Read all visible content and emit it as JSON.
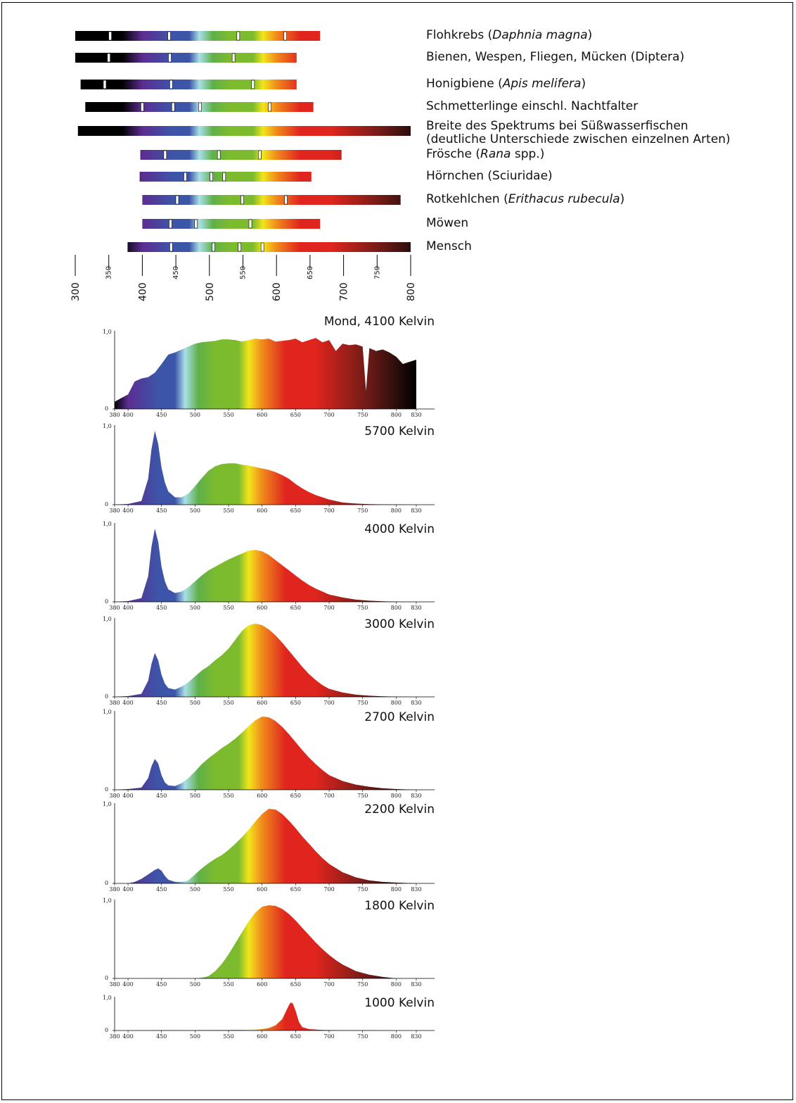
{
  "colors": {
    "black": "#000000",
    "violet": "#5b2d91",
    "blue": "#3d55a8",
    "cyan": "#a9dfe8",
    "green": "#7dbb2e",
    "yellow": "#f2e51a",
    "orange": "#f08a1c",
    "red": "#e0251e",
    "darkred": "#6a1a16",
    "marker": "#ffffff"
  },
  "species": [
    {
      "prefix": "Flohkrebs (",
      "italic": "Daphnia magna",
      "suffix": ")",
      "start": 300,
      "end": 665,
      "markers": [
        352,
        440,
        543,
        613
      ]
    },
    {
      "prefix": "Bienen, Wespen, Fliegen, Mücken (Diptera)",
      "italic": "",
      "suffix": "",
      "start": 300,
      "end": 630,
      "markers": [
        350,
        441,
        536
      ]
    },
    {
      "prefix": "Honigbiene (",
      "italic": "Apis melifera",
      "suffix": ")",
      "start": 308,
      "end": 630,
      "markers": [
        344,
        443,
        565
      ]
    },
    {
      "prefix": "Schmetterlinge einschl. Nachtfalter",
      "italic": "",
      "suffix": "",
      "start": 315,
      "end": 655,
      "markers": [
        400,
        446,
        486,
        590
      ]
    },
    {
      "prefix": "Breite des Spektrums bei Süßwasserfischen",
      "line2": "(deutliche Unterschiede zwischen einzelnen Arten)",
      "italic": "",
      "suffix": "",
      "start": 304,
      "end": 800,
      "markers": []
    },
    {
      "prefix": "Frösche (",
      "italic": "Rana",
      "suffix": " spp.)",
      "start": 397,
      "end": 697,
      "markers": [
        434,
        514,
        575
      ]
    },
    {
      "prefix": "Hörnchen (Sciuridae)",
      "italic": "",
      "suffix": "",
      "start": 396,
      "end": 652,
      "markers": [
        464,
        503,
        522
      ]
    },
    {
      "prefix": "Rotkehlchen (",
      "italic": "Erithacus rubecula",
      "suffix": ")",
      "start": 400,
      "end": 785,
      "markers": [
        452,
        549,
        614
      ]
    },
    {
      "prefix": "Möwen",
      "italic": "",
      "suffix": "",
      "start": 400,
      "end": 665,
      "markers": [
        442,
        480,
        561
      ]
    },
    {
      "prefix": "Mensch",
      "italic": "",
      "suffix": "",
      "start": 378,
      "end": 800,
      "markers": [
        443,
        506,
        545,
        579
      ]
    }
  ],
  "top_axis": {
    "ticks": [
      "300",
      "350",
      "400",
      "450",
      "500",
      "550",
      "600",
      "650",
      "700",
      "750",
      "800"
    ]
  },
  "chart_data": [
    {
      "type": "area",
      "title": "Mond, 4100 Kelvin",
      "xlim": [
        380,
        830
      ],
      "ylim": [
        0,
        1
      ],
      "yticks": [
        "1,0",
        "0"
      ],
      "xticks": [
        "380",
        "400",
        "450",
        "500",
        "550",
        "600",
        "650",
        "700",
        "750",
        "800",
        "830"
      ],
      "x": [
        380,
        390,
        400,
        410,
        420,
        430,
        440,
        450,
        460,
        470,
        480,
        490,
        500,
        510,
        520,
        530,
        540,
        550,
        560,
        570,
        580,
        590,
        600,
        610,
        620,
        630,
        640,
        650,
        660,
        670,
        680,
        690,
        700,
        710,
        720,
        730,
        740,
        750,
        755,
        760,
        770,
        780,
        790,
        800,
        810,
        820,
        830
      ],
      "y": [
        0.1,
        0.15,
        0.2,
        0.38,
        0.42,
        0.44,
        0.5,
        0.62,
        0.75,
        0.78,
        0.82,
        0.86,
        0.9,
        0.92,
        0.93,
        0.94,
        0.96,
        0.96,
        0.95,
        0.93,
        0.95,
        0.97,
        0.96,
        0.97,
        0.93,
        0.94,
        0.95,
        0.97,
        0.92,
        0.95,
        0.98,
        0.92,
        0.95,
        0.8,
        0.9,
        0.88,
        0.89,
        0.86,
        0.25,
        0.84,
        0.8,
        0.82,
        0.78,
        0.72,
        0.62,
        0.65,
        0.68
      ]
    },
    {
      "type": "area",
      "title": "5700 Kelvin",
      "xlim": [
        380,
        830
      ],
      "ylim": [
        0,
        1
      ],
      "yticks": [
        "1,0",
        "0"
      ],
      "xticks": [
        "380",
        "400",
        "450",
        "500",
        "550",
        "600",
        "650",
        "700",
        "750",
        "800",
        "830"
      ],
      "x": [
        380,
        400,
        420,
        430,
        435,
        440,
        445,
        450,
        455,
        460,
        470,
        480,
        490,
        500,
        510,
        520,
        530,
        540,
        550,
        560,
        570,
        580,
        590,
        600,
        610,
        620,
        630,
        640,
        650,
        660,
        670,
        680,
        690,
        700,
        720,
        740,
        760,
        780,
        800,
        830
      ],
      "y": [
        0,
        0.01,
        0.05,
        0.35,
        0.75,
        1.0,
        0.82,
        0.5,
        0.3,
        0.18,
        0.1,
        0.1,
        0.15,
        0.25,
        0.36,
        0.46,
        0.52,
        0.55,
        0.56,
        0.56,
        0.54,
        0.53,
        0.51,
        0.49,
        0.47,
        0.44,
        0.4,
        0.35,
        0.28,
        0.22,
        0.17,
        0.13,
        0.1,
        0.07,
        0.03,
        0.015,
        0.008,
        0.004,
        0.002,
        0
      ]
    },
    {
      "type": "area",
      "title": "4000 Kelvin",
      "xlim": [
        380,
        830
      ],
      "ylim": [
        0,
        1
      ],
      "yticks": [
        "1,0",
        "0"
      ],
      "xticks": [
        "380",
        "400",
        "450",
        "500",
        "550",
        "600",
        "650",
        "700",
        "750",
        "800",
        "830"
      ],
      "x": [
        380,
        400,
        420,
        430,
        435,
        440,
        445,
        450,
        455,
        460,
        470,
        480,
        490,
        500,
        510,
        520,
        530,
        540,
        550,
        560,
        570,
        580,
        590,
        600,
        610,
        620,
        630,
        640,
        650,
        660,
        670,
        680,
        690,
        700,
        720,
        740,
        760,
        780,
        800,
        830
      ],
      "y": [
        0,
        0.01,
        0.05,
        0.35,
        0.75,
        1.0,
        0.82,
        0.48,
        0.28,
        0.17,
        0.12,
        0.14,
        0.2,
        0.28,
        0.36,
        0.43,
        0.48,
        0.53,
        0.58,
        0.62,
        0.66,
        0.7,
        0.71,
        0.69,
        0.64,
        0.57,
        0.5,
        0.43,
        0.36,
        0.29,
        0.23,
        0.18,
        0.14,
        0.1,
        0.06,
        0.03,
        0.015,
        0.007,
        0.003,
        0
      ]
    },
    {
      "type": "area",
      "title": "3000 Kelvin",
      "xlim": [
        380,
        830
      ],
      "ylim": [
        0,
        1
      ],
      "yticks": [
        "1,0",
        "0"
      ],
      "xticks": [
        "380",
        "400",
        "450",
        "500",
        "550",
        "600",
        "650",
        "700",
        "750",
        "800",
        "830"
      ],
      "x": [
        380,
        400,
        420,
        430,
        435,
        440,
        445,
        450,
        455,
        460,
        470,
        480,
        490,
        500,
        510,
        520,
        530,
        540,
        550,
        560,
        570,
        580,
        590,
        600,
        610,
        620,
        630,
        640,
        650,
        660,
        670,
        680,
        690,
        700,
        720,
        740,
        760,
        780,
        800,
        830
      ],
      "y": [
        0,
        0.01,
        0.04,
        0.22,
        0.45,
        0.6,
        0.5,
        0.3,
        0.18,
        0.12,
        0.1,
        0.14,
        0.2,
        0.28,
        0.36,
        0.42,
        0.5,
        0.57,
        0.66,
        0.78,
        0.9,
        0.98,
        1.0,
        0.98,
        0.92,
        0.84,
        0.74,
        0.63,
        0.52,
        0.41,
        0.31,
        0.23,
        0.16,
        0.11,
        0.06,
        0.03,
        0.015,
        0.007,
        0.003,
        0
      ]
    },
    {
      "type": "area",
      "title": "2700 Kelvin",
      "xlim": [
        380,
        830
      ],
      "ylim": [
        0,
        1
      ],
      "yticks": [
        "1,0",
        "0"
      ],
      "xticks": [
        "380",
        "400",
        "450",
        "500",
        "550",
        "600",
        "650",
        "700",
        "750",
        "800",
        "830"
      ],
      "x": [
        380,
        400,
        420,
        430,
        435,
        440,
        445,
        450,
        455,
        460,
        470,
        480,
        490,
        500,
        510,
        520,
        530,
        540,
        550,
        560,
        570,
        580,
        590,
        600,
        610,
        620,
        630,
        640,
        650,
        660,
        670,
        680,
        690,
        700,
        720,
        740,
        760,
        780,
        800,
        830
      ],
      "y": [
        0,
        0.01,
        0.03,
        0.16,
        0.32,
        0.42,
        0.36,
        0.2,
        0.1,
        0.06,
        0.05,
        0.09,
        0.16,
        0.25,
        0.35,
        0.43,
        0.5,
        0.57,
        0.63,
        0.7,
        0.78,
        0.87,
        0.95,
        1.0,
        0.99,
        0.94,
        0.86,
        0.76,
        0.65,
        0.54,
        0.44,
        0.35,
        0.27,
        0.2,
        0.12,
        0.07,
        0.04,
        0.02,
        0.01,
        0
      ]
    },
    {
      "type": "area",
      "title": "2200 Kelvin",
      "xlim": [
        380,
        830
      ],
      "ylim": [
        0,
        1
      ],
      "yticks": [
        "1,0",
        "0"
      ],
      "xticks": [
        "380",
        "400",
        "450",
        "500",
        "550",
        "600",
        "650",
        "700",
        "750",
        "800",
        "830"
      ],
      "x": [
        380,
        400,
        410,
        420,
        430,
        440,
        445,
        450,
        455,
        460,
        470,
        480,
        490,
        500,
        510,
        520,
        530,
        540,
        550,
        560,
        570,
        580,
        590,
        600,
        610,
        620,
        630,
        640,
        650,
        660,
        670,
        680,
        690,
        700,
        720,
        740,
        760,
        780,
        800,
        830
      ],
      "y": [
        0,
        0.0,
        0.02,
        0.06,
        0.12,
        0.18,
        0.2,
        0.17,
        0.1,
        0.05,
        0.02,
        0.02,
        0.04,
        0.12,
        0.2,
        0.27,
        0.33,
        0.38,
        0.45,
        0.53,
        0.62,
        0.72,
        0.83,
        0.93,
        1.0,
        0.99,
        0.93,
        0.84,
        0.74,
        0.63,
        0.53,
        0.43,
        0.34,
        0.26,
        0.15,
        0.08,
        0.04,
        0.02,
        0.01,
        0
      ]
    },
    {
      "type": "area",
      "title": "1800 Kelvin",
      "xlim": [
        380,
        830
      ],
      "ylim": [
        0,
        1
      ],
      "yticks": [
        "1,0",
        "0"
      ],
      "xticks": [
        "380",
        "400",
        "450",
        "500",
        "550",
        "600",
        "650",
        "700",
        "750",
        "800",
        "830"
      ],
      "x": [
        380,
        400,
        450,
        500,
        510,
        520,
        530,
        540,
        550,
        560,
        570,
        580,
        590,
        600,
        610,
        620,
        630,
        640,
        650,
        660,
        670,
        680,
        690,
        700,
        710,
        720,
        740,
        760,
        780,
        800,
        830
      ],
      "y": [
        0,
        0,
        0,
        0.0,
        0.01,
        0.03,
        0.1,
        0.2,
        0.33,
        0.48,
        0.63,
        0.78,
        0.9,
        0.98,
        1.0,
        0.99,
        0.95,
        0.88,
        0.79,
        0.69,
        0.59,
        0.49,
        0.4,
        0.32,
        0.25,
        0.19,
        0.1,
        0.05,
        0.02,
        0.0,
        0
      ]
    },
    {
      "type": "area",
      "title": "1000 Kelvin",
      "xlim": [
        380,
        830
      ],
      "ylim": [
        0,
        1
      ],
      "yticks": [
        "1,0",
        "0"
      ],
      "xticks": [
        "380",
        "400",
        "450",
        "500",
        "550",
        "600",
        "650",
        "700",
        "750",
        "800",
        "830"
      ],
      "x": [
        380,
        450,
        550,
        590,
        600,
        610,
        620,
        630,
        635,
        640,
        643,
        646,
        650,
        655,
        660,
        670,
        690,
        720,
        760,
        800,
        830
      ],
      "y": [
        0,
        0.01,
        0.02,
        0.03,
        0.05,
        0.09,
        0.18,
        0.4,
        0.65,
        0.9,
        1.0,
        0.95,
        0.7,
        0.3,
        0.12,
        0.05,
        0.02,
        0.01,
        0.01,
        0.0,
        0
      ]
    }
  ]
}
